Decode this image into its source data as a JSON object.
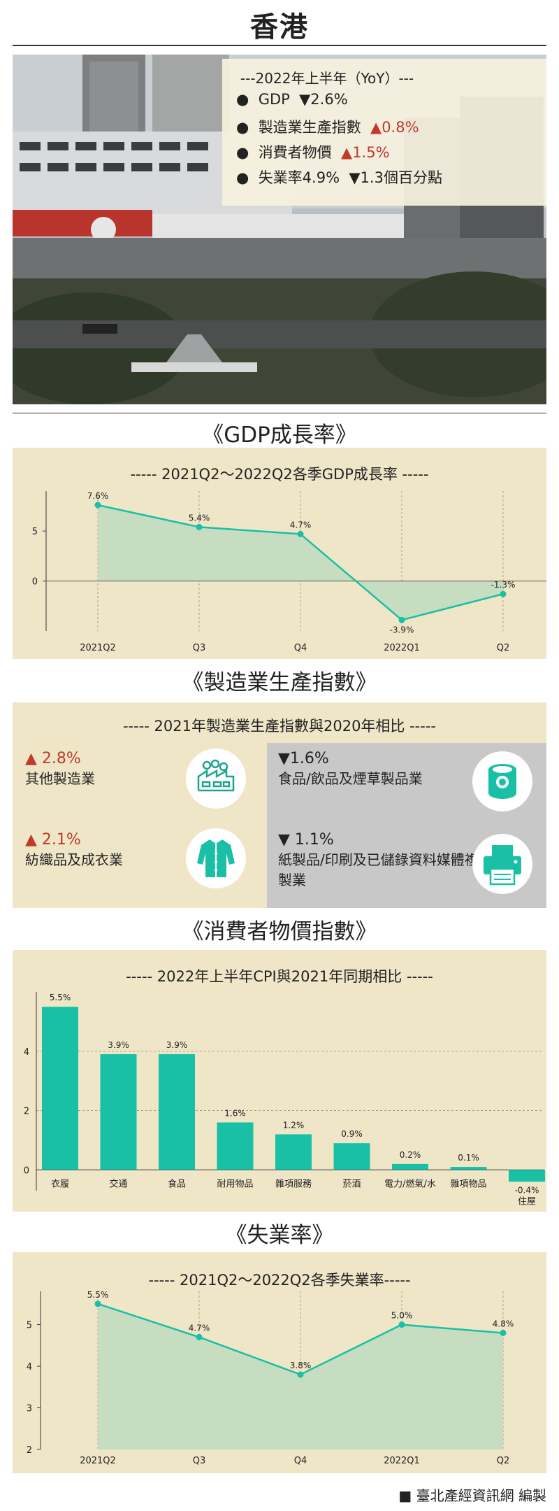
{
  "title": "香港",
  "summary": {
    "heading": "---2022年上半年（YoY）---",
    "items": [
      {
        "label": "GDP",
        "change": "▼2.6%",
        "dir": "down"
      },
      {
        "label": "製造業生產指數",
        "change": "▲0.8%",
        "dir": "up"
      },
      {
        "label": "消費者物價",
        "change": "▲1.5%",
        "dir": "up"
      },
      {
        "label": "失業率4.9%",
        "change": "▼1.3個百分點",
        "dir": "down"
      }
    ]
  },
  "gdp_section": {
    "title": "《GDP成長率》",
    "subtitle": "----- 2021Q2～2022Q2各季GDP成長率 -----"
  },
  "mfg_section": {
    "title": "《製造業生產指數》",
    "subtitle": "----- 2021年製造業生產指數與2020年相比 -----",
    "cells": [
      {
        "change": "▲ 2.8%",
        "dir": "up",
        "label": "其他製造業",
        "icon": "factory-icon"
      },
      {
        "change": "▼1.6%",
        "dir": "down",
        "label": "食品/飲品及煙草製品業",
        "icon": "canned-food-icon"
      },
      {
        "change": "▲ 2.1%",
        "dir": "up",
        "label": "紡織品及成衣業",
        "icon": "coat-icon"
      },
      {
        "change": "▼ 1.1%",
        "dir": "down",
        "label": "紙製品/印刷及已儲錄資料媒體複製業",
        "icon": "printer-icon"
      }
    ]
  },
  "cpi_section": {
    "title": "《消費者物價指數》",
    "subtitle": "----- 2022年上半年CPI與2021年同期相比 -----"
  },
  "unemp_section": {
    "title": "《失業率》",
    "subtitle": "----- 2021Q2～2022Q2各季失業率-----"
  },
  "footer": "■ 臺北產經資訊網 編製",
  "colors": {
    "accent": "#19c0a5",
    "area": "#c3dcc1",
    "panel": "#efe6c8",
    "grey_panel": "#c8c8c8",
    "up": "#c0392b"
  },
  "chart_data": [
    {
      "type": "area",
      "categories": [
        "2021Q2",
        "Q3",
        "Q4",
        "2022Q1",
        "Q2"
      ],
      "values": [
        7.6,
        5.4,
        4.7,
        -3.9,
        -1.3
      ],
      "data_labels": [
        "7.6%",
        "5.4%",
        "4.7%",
        "-3.9%",
        "-1.3%"
      ],
      "yticks": [
        0,
        5
      ],
      "ylim": [
        -5,
        9
      ],
      "grid": "vertical dashed",
      "unit": "%"
    },
    {
      "type": "bar",
      "categories": [
        "衣履",
        "交通",
        "食品",
        "耐用物品",
        "雜項服務",
        "菸酒",
        "電力/燃氣/水",
        "雜項物品",
        "住屋"
      ],
      "values": [
        5.5,
        3.9,
        3.9,
        1.6,
        1.2,
        0.9,
        0.2,
        0.1,
        -0.4
      ],
      "data_labels": [
        "5.5%",
        "3.9%",
        "3.9%",
        "1.6%",
        "1.2%",
        "0.9%",
        "0.2%",
        "0.1%",
        "-0.4%"
      ],
      "yticks": [
        0,
        2,
        4
      ],
      "ylim": [
        -0.7,
        6.0
      ],
      "grid": "horizontal dashed",
      "unit": "%"
    },
    {
      "type": "area",
      "categories": [
        "2021Q2",
        "Q3",
        "Q4",
        "2022Q1",
        "Q2"
      ],
      "values": [
        5.5,
        4.7,
        3.8,
        5.0,
        4.8
      ],
      "data_labels": [
        "5.5%",
        "4.7%",
        "3.8%",
        "5.0%",
        "4.8%"
      ],
      "yticks": [
        2,
        3,
        4,
        5
      ],
      "ylim": [
        2,
        5.8
      ],
      "grid": "vertical dashed",
      "unit": "%"
    }
  ]
}
